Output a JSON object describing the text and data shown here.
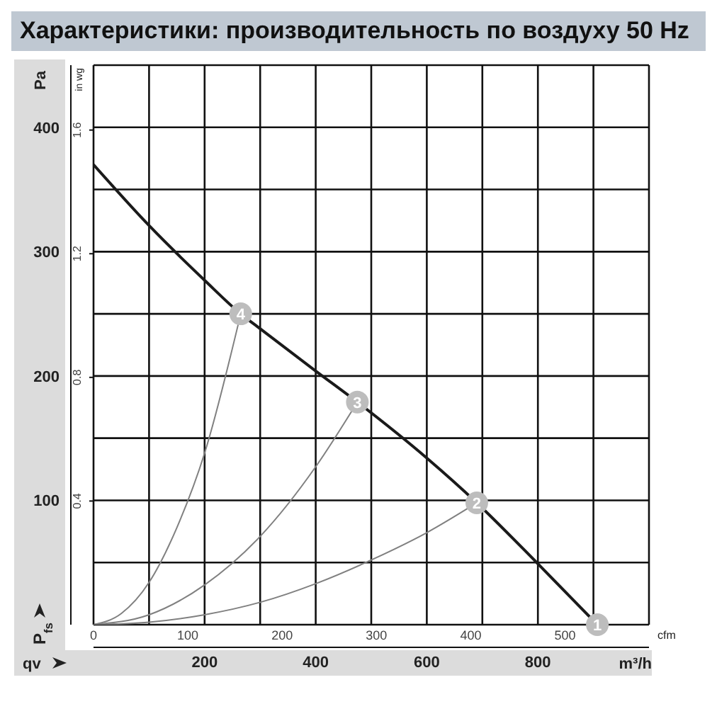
{
  "chart_data": {
    "type": "line",
    "title": "Характеристики: производительность по воздуху 50 Hz",
    "xlabel": "m³/h",
    "ylabel": "Pa",
    "x2label": "cfm",
    "y2label": "in wg",
    "annotations": [
      "qv",
      "P$_{fs}$",
      {
        "text": "1",
        "x": 907,
        "y": 0
      },
      {
        "text": "2",
        "x": 690,
        "y": 98
      },
      {
        "text": "3",
        "x": 475,
        "y": 179
      },
      {
        "text": "4",
        "x": 265,
        "y": 250
      }
    ],
    "series": [
      {
        "color": "#1a1a1a",
        "x": [
          0,
          100,
          200,
          265,
          300,
          400,
          475,
          600,
          690,
          800,
          907
        ],
        "values": [
          370,
          321,
          277,
          250,
          238,
          204,
          179,
          134,
          98,
          49,
          0
        ]
      },
      {
        "color": "#808080",
        "x": [
          0,
          100,
          200,
          300,
          400,
          500,
          600,
          690
        ],
        "values": [
          0,
          2,
          8,
          18,
          33,
          52,
          74,
          98
        ]
      },
      {
        "color": "#808080",
        "x": [
          0,
          100,
          200,
          300,
          400,
          475
        ],
        "values": [
          0,
          8,
          32,
          71,
          127,
          179
        ]
      },
      {
        "color": "#808080",
        "x": [
          0,
          50,
          100,
          150,
          200,
          265
        ],
        "values": [
          0,
          9,
          34,
          78,
          138,
          250
        ]
      }
    ],
    "xlim": [
      0,
      1000
    ],
    "xticks": [
      {
        "value": 0,
        "label": null
      },
      {
        "value": 100,
        "label": null
      },
      200,
      {
        "value": 300,
        "label": null
      },
      400,
      {
        "value": 500,
        "label": null
      },
      600,
      {
        "value": 700,
        "label": null
      },
      800,
      {
        "value": 900,
        "label": null
      },
      {
        "value": 1000,
        "label": null
      }
    ],
    "ylim": [
      0,
      450
    ],
    "yticks": [
      {
        "value": 0,
        "label": null
      },
      {
        "value": 50,
        "label": null
      },
      100,
      {
        "value": 150,
        "label": null
      },
      200,
      {
        "value": 250,
        "label": null
      },
      300,
      {
        "value": 350,
        "label": null
      },
      400,
      {
        "value": 450,
        "label": null
      }
    ],
    "x2lim": [
      0,
      589
    ],
    "x2ticks": [
      0,
      100,
      200,
      300,
      400,
      500
    ],
    "y2lim": [
      0,
      1.81
    ],
    "y2ticks": [
      0.4,
      0.8,
      1.2,
      1.6
    ],
    "grid": true,
    "legend": false,
    "marker": "none",
    "line_style": "solid"
  }
}
